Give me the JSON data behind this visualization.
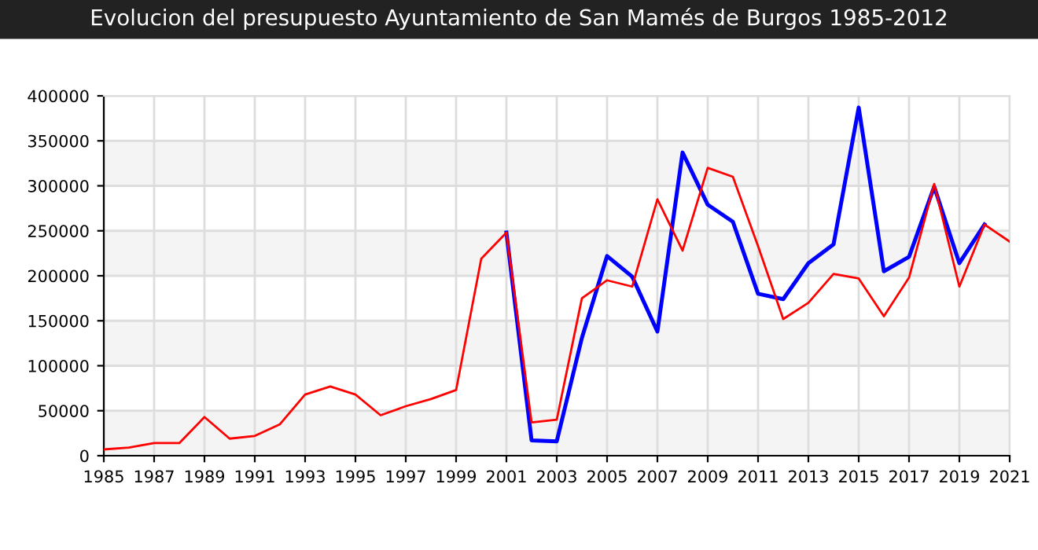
{
  "chart_data": {
    "type": "line",
    "title": "Evolucion del presupuesto Ayuntamiento de San Mamés de Burgos 1985-2012",
    "series": [
      {
        "color": "#0000ff",
        "x": [
          2001,
          2002,
          2003,
          2004,
          2005,
          2006,
          2007,
          2008,
          2009,
          2010,
          2011,
          2012,
          2013,
          2014,
          2015,
          2016,
          2017,
          2018,
          2019,
          2020
        ],
        "values": [
          248000,
          17000,
          16000,
          131000,
          222000,
          199000,
          138000,
          337000,
          279000,
          260000,
          180000,
          174000,
          214000,
          235000,
          387000,
          205000,
          221000,
          299000,
          214000,
          257000
        ]
      },
      {
        "color": "#ff0000",
        "x": [
          1985,
          1986,
          1987,
          1988,
          1989,
          1990,
          1991,
          1992,
          1993,
          1994,
          1995,
          1996,
          1997,
          1998,
          1999,
          2000,
          2001,
          2002,
          2003,
          2004,
          2005,
          2006,
          2007,
          2008,
          2009,
          2010,
          2011,
          2012,
          2013,
          2014,
          2015,
          2016,
          2017,
          2018,
          2019,
          2020,
          2021
        ],
        "values": [
          7000,
          9000,
          14000,
          14000,
          43000,
          19000,
          22000,
          35000,
          68000,
          77000,
          68000,
          45000,
          55000,
          63000,
          73000,
          219000,
          248000,
          37000,
          40000,
          175000,
          195000,
          188000,
          285000,
          228000,
          320000,
          310000,
          233000,
          152000,
          170000,
          202000,
          197000,
          155000,
          198000,
          302000,
          188000,
          257000,
          238000
        ]
      }
    ],
    "xlim": [
      1985,
      2021
    ],
    "xticks": [
      1985,
      1987,
      1989,
      1991,
      1993,
      1995,
      1997,
      1999,
      2001,
      2003,
      2005,
      2007,
      2009,
      2011,
      2013,
      2015,
      2017,
      2019,
      2021
    ],
    "ylim": [
      0,
      400000
    ],
    "yticks": [
      0,
      50000,
      100000,
      150000,
      200000,
      250000,
      300000,
      350000,
      400000
    ],
    "bands": [
      {
        "axis": "y",
        "from": 0,
        "to": 50000,
        "color": "#f4f4f4"
      },
      {
        "axis": "y",
        "from": 100000,
        "to": 150000,
        "color": "#f4f4f4"
      },
      {
        "axis": "y",
        "from": 200000,
        "to": 250000,
        "color": "#f4f4f4"
      },
      {
        "axis": "y",
        "from": 300000,
        "to": 350000,
        "color": "#f4f4f4"
      }
    ],
    "grid": true,
    "line_style": "solid",
    "marker": "none"
  }
}
